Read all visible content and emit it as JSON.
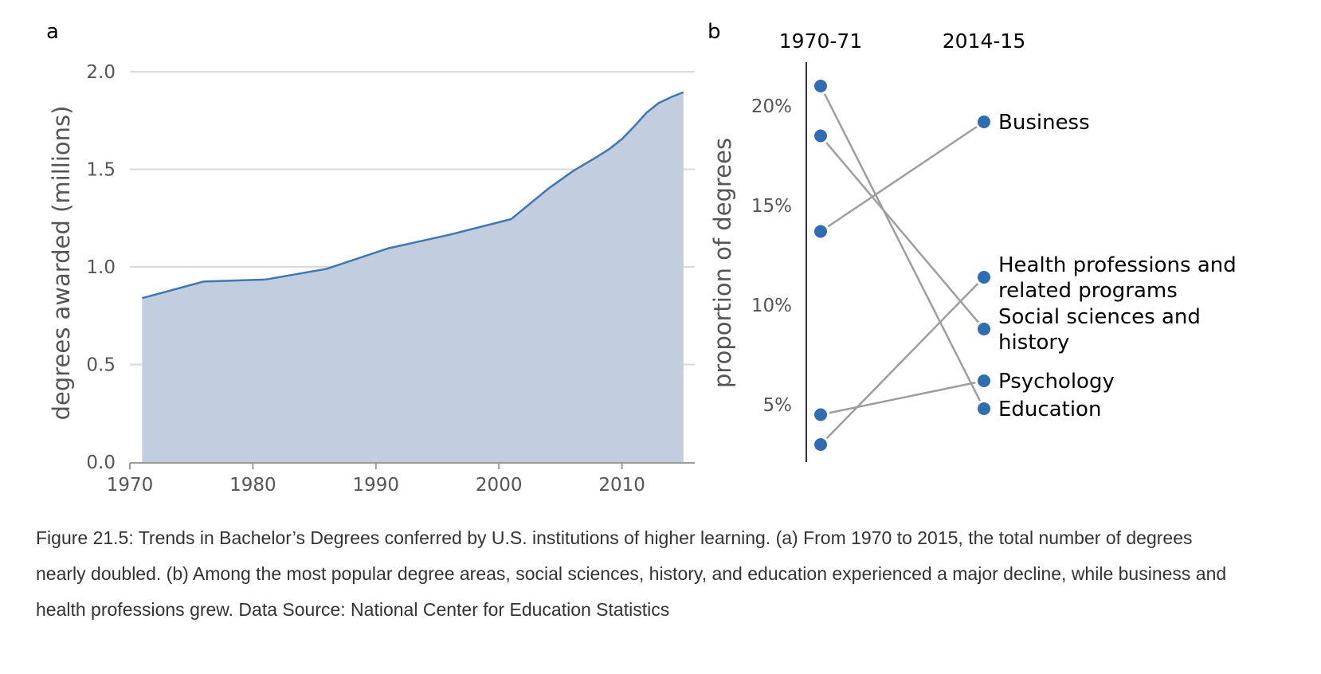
{
  "chart_data": [
    {
      "type": "area",
      "panel_letter": "a",
      "xlabel": "",
      "ylabel": "degrees awarded (millions)",
      "xlim": [
        1970,
        2016
      ],
      "ylim": [
        0,
        2.0
      ],
      "x_ticks": [
        1970,
        1980,
        1990,
        2000,
        2010
      ],
      "y_ticks": [
        "0.0",
        "0.5",
        "1.0",
        "1.5",
        "2.0"
      ],
      "grid": "horizontal",
      "color": "#3f77b0",
      "fill_color": "#c2cde0",
      "x": [
        1971,
        1976,
        1981,
        1986,
        1991,
        1996,
        2001,
        2004,
        2006,
        2008,
        2009,
        2010,
        2011,
        2012,
        2013,
        2014,
        2015
      ],
      "y": [
        0.84,
        0.925,
        0.935,
        0.99,
        1.095,
        1.165,
        1.245,
        1.4,
        1.49,
        1.565,
        1.605,
        1.655,
        1.72,
        1.79,
        1.84,
        1.87,
        1.895
      ]
    },
    {
      "type": "slope",
      "panel_letter": "b",
      "ylabel": "proportion of degrees",
      "columns": [
        "1970-71",
        "2014-15"
      ],
      "y_ticks": [
        "5%",
        "10%",
        "15%",
        "20%"
      ],
      "ylim": [
        2,
        22
      ],
      "color": "#2f6db0",
      "line_color": "#9e9e9e",
      "series": [
        {
          "name": "Business",
          "lines": [
            "Business"
          ],
          "values": [
            13.7,
            19.2
          ]
        },
        {
          "name": "Health professions and related programs",
          "lines": [
            "Health professions and",
            "related programs"
          ],
          "values": [
            3.0,
            11.4
          ]
        },
        {
          "name": "Social sciences and history",
          "lines": [
            "Social sciences and",
            "history"
          ],
          "values": [
            18.5,
            8.8
          ]
        },
        {
          "name": "Psychology",
          "lines": [
            "Psychology"
          ],
          "values": [
            4.5,
            6.2
          ]
        },
        {
          "name": "Education",
          "lines": [
            "Education"
          ],
          "values": [
            21.0,
            4.8
          ]
        }
      ]
    }
  ],
  "caption": "Figure 21.5: Trends in Bachelor’s Degrees conferred by U.S. institutions of higher learning. (a) From 1970 to 2015, the total number of degrees nearly doubled. (b) Among the most popular degree areas, social sciences, history, and education experienced a major decline, while business and health professions grew. Data Source: National Center for Education Statistics"
}
